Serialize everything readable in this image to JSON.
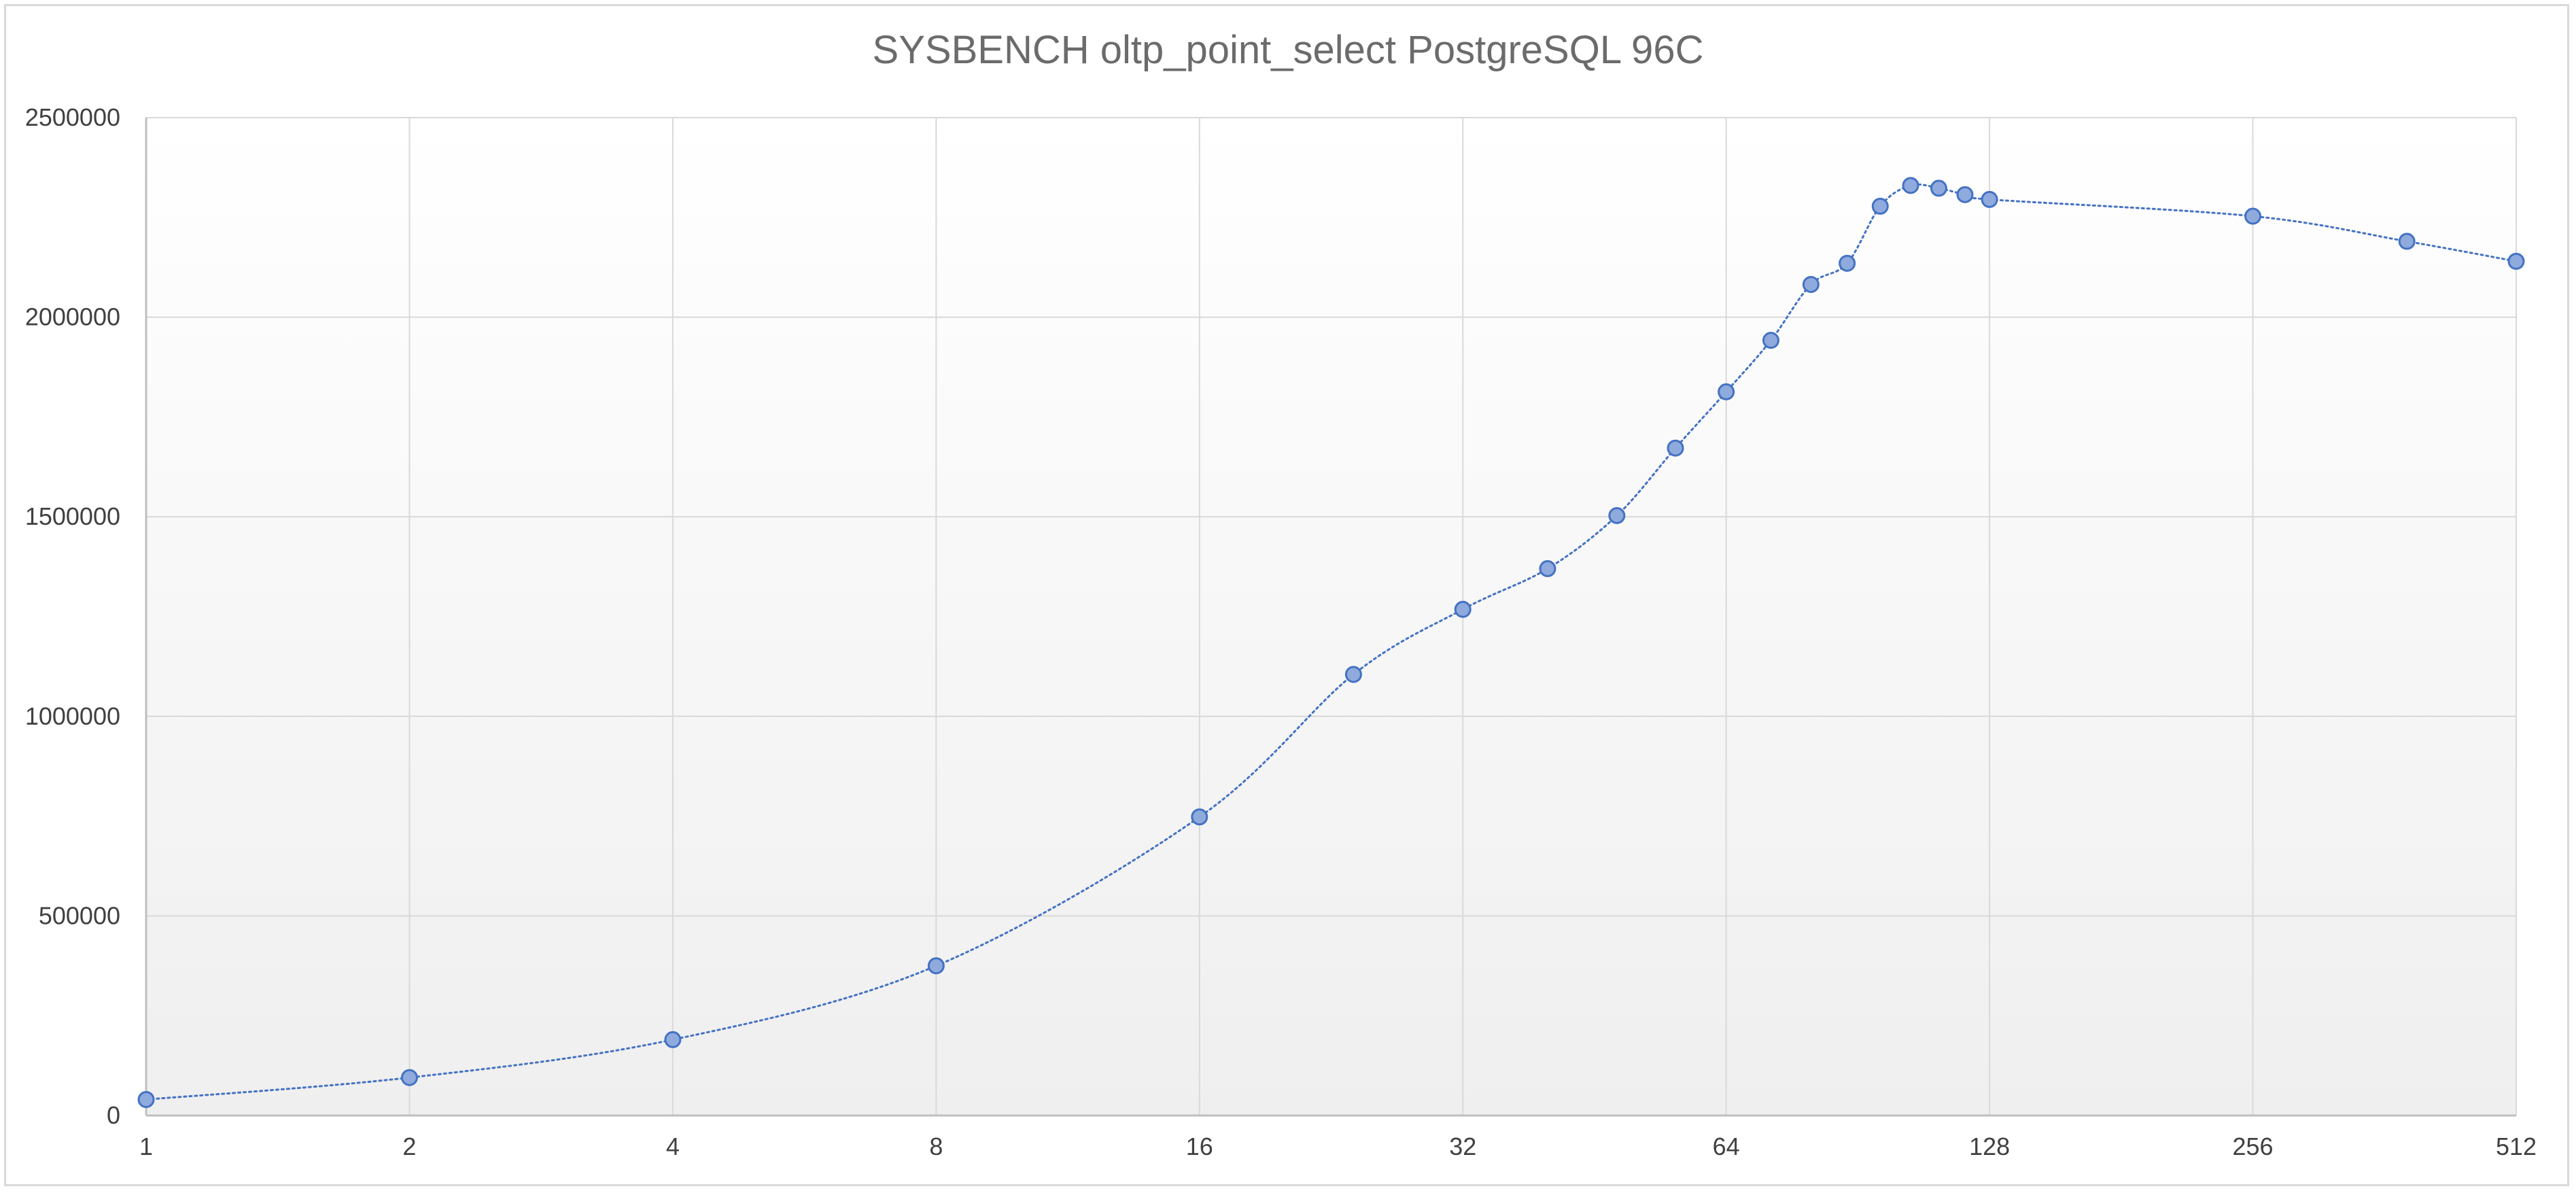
{
  "chart_data": {
    "type": "scatter",
    "title": "SYSBENCH oltp_point_select PostgreSQL 96C",
    "xlabel": "",
    "ylabel": "",
    "x_scale": "log2",
    "xlim": [
      1,
      512
    ],
    "ylim": [
      0,
      2500000
    ],
    "x_ticks": [
      1,
      2,
      4,
      8,
      16,
      32,
      64,
      128,
      256,
      512
    ],
    "x_tick_labels": [
      "1",
      "2",
      "4",
      "8",
      "16",
      "32",
      "64",
      "128",
      "256",
      "512"
    ],
    "y_ticks": [
      0,
      500000,
      1000000,
      1500000,
      2000000,
      2500000
    ],
    "y_tick_labels": [
      "0",
      "500000",
      "1000000",
      "1500000",
      "2000000",
      "2500000"
    ],
    "grid": true,
    "legend": "none",
    "line_style": "dotted smoothed",
    "series": [
      {
        "color": "#4472c4",
        "marker_fill": "#8faadc",
        "x": [
          1,
          2,
          4,
          8,
          16,
          24,
          32,
          40,
          48,
          56,
          64,
          72,
          80,
          88,
          96,
          104,
          112,
          120,
          128,
          256,
          384,
          512
        ],
        "y": [
          40000,
          95000,
          190000,
          375000,
          748000,
          1105000,
          1268000,
          1370000,
          1503000,
          1672000,
          1813000,
          1942000,
          2082000,
          2135000,
          2278000,
          2330000,
          2323000,
          2307000,
          2295000,
          2253000,
          2190000,
          2140000
        ]
      }
    ]
  }
}
